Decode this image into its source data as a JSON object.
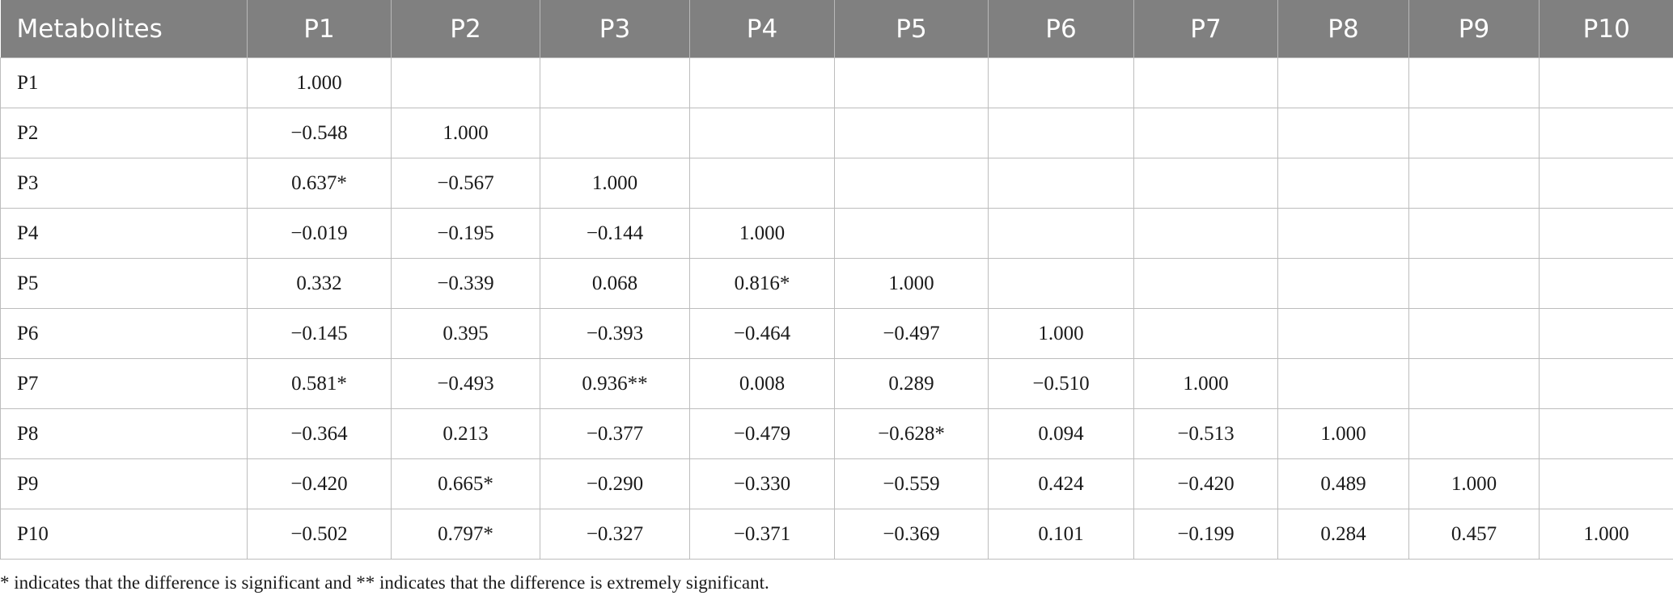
{
  "table": {
    "header": [
      "Metabolites",
      "P1",
      "P2",
      "P3",
      "P4",
      "P5",
      "P6",
      "P7",
      "P8",
      "P9",
      "P10"
    ],
    "rows": [
      [
        "P1",
        "1.000"
      ],
      [
        "P2",
        "−0.548",
        "1.000"
      ],
      [
        "P3",
        "0.637*",
        "−0.567",
        "1.000"
      ],
      [
        "P4",
        "−0.019",
        "−0.195",
        "−0.144",
        "1.000"
      ],
      [
        "P5",
        "0.332",
        "−0.339",
        "0.068",
        "0.816*",
        "1.000"
      ],
      [
        "P6",
        "−0.145",
        "0.395",
        "−0.393",
        "−0.464",
        "−0.497",
        "1.000"
      ],
      [
        "P7",
        "0.581*",
        "−0.493",
        "0.936**",
        "0.008",
        "0.289",
        "−0.510",
        "1.000"
      ],
      [
        "P8",
        "−0.364",
        "0.213",
        "−0.377",
        "−0.479",
        "−0.628*",
        "0.094",
        "−0.513",
        "1.000"
      ],
      [
        "P9",
        "−0.420",
        "0.665*",
        "−0.290",
        "−0.330",
        "−0.559",
        "0.424",
        "−0.420",
        "0.489",
        "1.000"
      ],
      [
        "P10",
        "−0.502",
        "0.797*",
        "−0.327",
        "−0.371",
        "−0.369",
        "0.101",
        "−0.199",
        "0.284",
        "0.457",
        "1.000"
      ]
    ]
  },
  "footnote": "* indicates that the difference is significant and ** indicates that the difference is extremely significant."
}
